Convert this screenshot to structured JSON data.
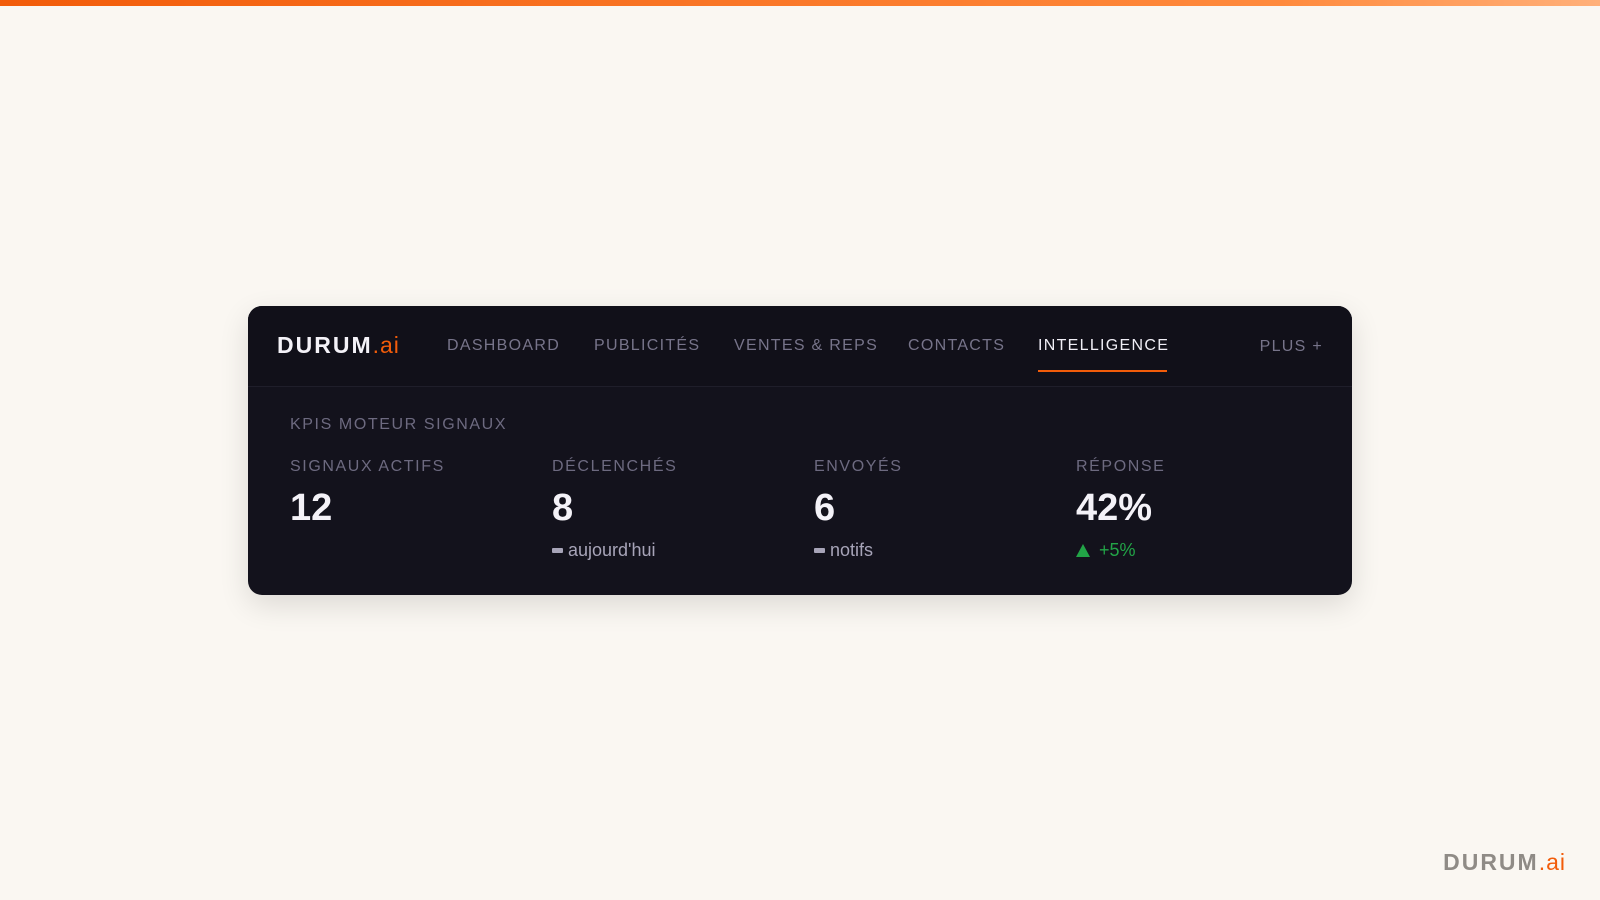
{
  "brand": {
    "name": "DURUM",
    "suffix": ".ai",
    "accent": "#f25c0a"
  },
  "nav": {
    "items": [
      {
        "label": "DASHBOARD"
      },
      {
        "label": "PUBLICITÉS"
      },
      {
        "label": "VENTES & REPS"
      },
      {
        "label": "CONTACTS"
      },
      {
        "label": "INTELLIGENCE",
        "active": true
      }
    ],
    "more_label": "PLUS +"
  },
  "section": {
    "title": "KPIS MOTEUR SIGNAUX"
  },
  "kpis": [
    {
      "label": "SIGNAUX ACTIFS",
      "value": "12"
    },
    {
      "label": "DÉCLENCHÉS",
      "value": "8",
      "sub": "aujourd'hui",
      "sub_icon": "dash-icon"
    },
    {
      "label": "ENVOYÉS",
      "value": "6",
      "sub": "notifs",
      "sub_icon": "dash-icon"
    },
    {
      "label": "RÉPONSE",
      "value": "42%",
      "sub": "+5%",
      "sub_icon": "triangle-up-icon",
      "sub_color": "#22a447"
    }
  ],
  "footer": {
    "brand": "DURUM",
    "suffix": ".ai"
  }
}
